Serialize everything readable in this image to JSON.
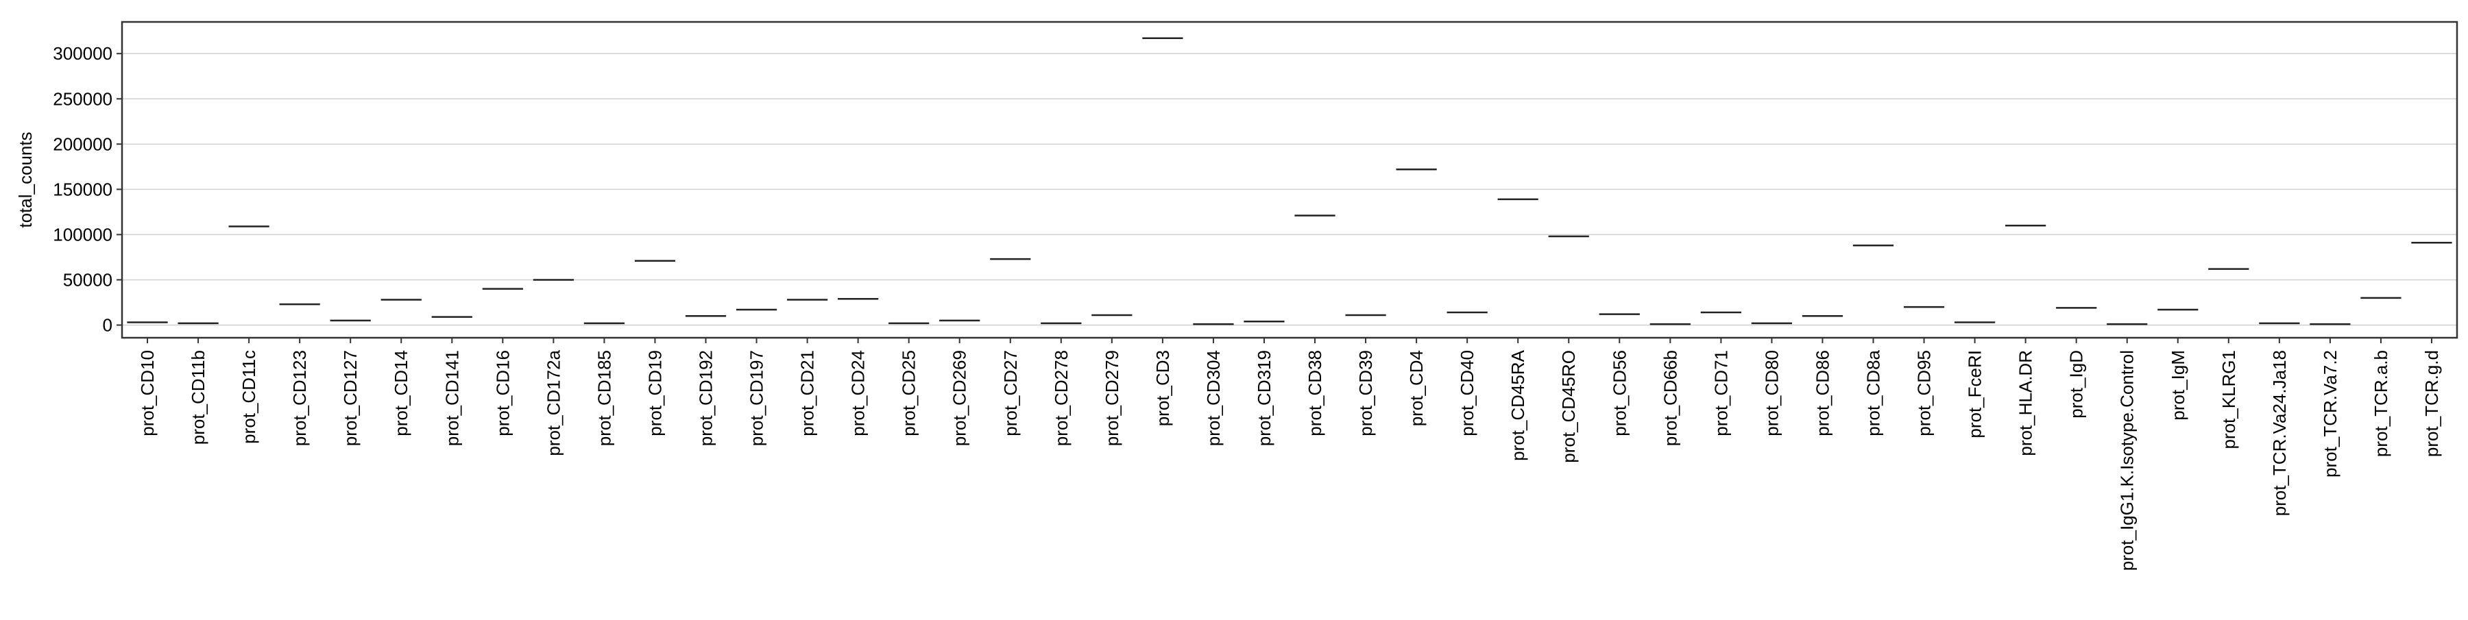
{
  "chart_data": {
    "type": "box",
    "ylabel": "total_counts",
    "xlabel": "",
    "ylim": [
      -14000,
      335000
    ],
    "yticks": [
      {
        "value": 0,
        "label": "0"
      },
      {
        "value": 50000,
        "label": "50000"
      },
      {
        "value": 100000,
        "label": "100000"
      },
      {
        "value": 150000,
        "label": "150000"
      },
      {
        "value": 200000,
        "label": "200000"
      },
      {
        "value": 250000,
        "label": "250000"
      },
      {
        "value": 300000,
        "label": "300000"
      }
    ],
    "grid": "horizontal",
    "categories": [
      "prot_CD10",
      "prot_CD11b",
      "prot_CD11c",
      "prot_CD123",
      "prot_CD127",
      "prot_CD14",
      "prot_CD141",
      "prot_CD16",
      "prot_CD172a",
      "prot_CD185",
      "prot_CD19",
      "prot_CD192",
      "prot_CD197",
      "prot_CD21",
      "prot_CD24",
      "prot_CD25",
      "prot_CD269",
      "prot_CD27",
      "prot_CD278",
      "prot_CD279",
      "prot_CD3",
      "prot_CD304",
      "prot_CD319",
      "prot_CD38",
      "prot_CD39",
      "prot_CD4",
      "prot_CD40",
      "prot_CD45RA",
      "prot_CD45RO",
      "prot_CD56",
      "prot_CD66b",
      "prot_CD71",
      "prot_CD80",
      "prot_CD86",
      "prot_CD8a",
      "prot_CD95",
      "prot_FceRI",
      "prot_HLA.DR",
      "prot_IgD",
      "prot_IgG1.K.Isotype.Control",
      "prot_IgM",
      "prot_KLRG1",
      "prot_TCR.Va24.Ja18",
      "prot_TCR.Va7.2",
      "prot_TCR.a.b",
      "prot_TCR.g.d"
    ],
    "values": [
      3000,
      2000,
      109000,
      23000,
      5000,
      28000,
      9000,
      40000,
      50000,
      2000,
      71000,
      10000,
      17000,
      28000,
      29000,
      2000,
      5000,
      73000,
      2000,
      11000,
      317000,
      1000,
      4000,
      121000,
      11000,
      172000,
      14000,
      139000,
      98000,
      12000,
      1000,
      14000,
      2000,
      10000,
      88000,
      20000,
      3000,
      110000,
      19000,
      1000,
      17000,
      62000,
      2000,
      1000,
      30000,
      91000
    ]
  }
}
